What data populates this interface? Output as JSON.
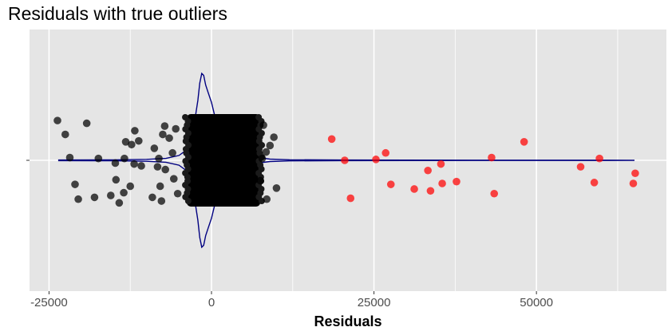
{
  "chart_data": {
    "type": "scatter",
    "title": "Residuals with true outliers",
    "xlabel": "Residuals",
    "ylabel": "",
    "xlim": [
      -28000,
      70000
    ],
    "x_ticks": [
      -25000,
      0,
      25000,
      50000
    ],
    "x_tick_labels": [
      "-25000",
      "0",
      "25000",
      "50000"
    ],
    "grid": true,
    "legend": "none",
    "colors": {
      "panel_bg": "#e5e5e5",
      "grid": "#ffffff",
      "normal_points": "#000000",
      "outlier_points": "#ff0000",
      "density_line": "#000080"
    },
    "series": [
      {
        "role": "normal",
        "points": [
          [
            -23700,
            0.43
          ],
          [
            -22500,
            0.28
          ],
          [
            -21800,
            0.03
          ],
          [
            -21000,
            -0.26
          ],
          [
            -20500,
            -0.42
          ],
          [
            -19200,
            0.4
          ],
          [
            -18000,
            -0.4
          ],
          [
            -17400,
            0.02
          ],
          [
            -15500,
            -0.38
          ],
          [
            -14800,
            -0.03
          ],
          [
            -14700,
            -0.21
          ],
          [
            -14200,
            -0.46
          ],
          [
            -13500,
            -0.35
          ],
          [
            -13400,
            0.02
          ],
          [
            -13200,
            0.2
          ],
          [
            -12500,
            -0.28
          ],
          [
            -12300,
            0.17
          ],
          [
            -11900,
            -0.04
          ],
          [
            -11800,
            0.32
          ],
          [
            -11200,
            0.21
          ],
          [
            -10800,
            -0.06
          ],
          [
            -9100,
            -0.4
          ],
          [
            -8800,
            0.13
          ],
          [
            -8300,
            -0.07
          ],
          [
            -8100,
            0.02
          ],
          [
            -7900,
            -0.28
          ],
          [
            -7700,
            -0.44
          ],
          [
            -7500,
            0.28
          ],
          [
            -7200,
            0.37
          ],
          [
            -7100,
            -0.1
          ],
          [
            -6500,
            0.24
          ],
          [
            -6000,
            0.08
          ],
          [
            -5800,
            -0.2
          ],
          [
            -5500,
            0.34
          ],
          [
            -5200,
            -0.36
          ],
          [
            9600,
            0.25
          ],
          [
            10000,
            -0.3
          ],
          [
            9000,
            0.16
          ],
          [
            8000,
            0.38
          ],
          [
            8500,
            -0.42
          ],
          [
            7800,
            0.02
          ],
          [
            7500,
            -0.22
          ],
          [
            8400,
            0.09
          ]
        ],
        "dense_cluster": {
          "x_range": [
            -3800,
            7500
          ],
          "y_range": [
            -0.5,
            0.5
          ]
        }
      },
      {
        "role": "outlier",
        "points": [
          [
            18500,
            0.23
          ],
          [
            20500,
            0.0
          ],
          [
            21400,
            -0.41
          ],
          [
            25300,
            0.01
          ],
          [
            26800,
            0.08
          ],
          [
            27600,
            -0.26
          ],
          [
            31200,
            -0.31
          ],
          [
            33300,
            -0.11
          ],
          [
            33700,
            -0.33
          ],
          [
            35300,
            -0.04
          ],
          [
            35500,
            -0.25
          ],
          [
            37700,
            -0.23
          ],
          [
            43100,
            0.03
          ],
          [
            43500,
            -0.36
          ],
          [
            48100,
            0.2
          ],
          [
            56800,
            -0.07
          ],
          [
            58900,
            -0.24
          ],
          [
            59700,
            0.02
          ],
          [
            64900,
            -0.25
          ],
          [
            65200,
            -0.14
          ]
        ]
      }
    ],
    "density_curve": [
      [
        -23500,
        0.003
      ],
      [
        -15000,
        0.005
      ],
      [
        -10000,
        0.01
      ],
      [
        -7000,
        0.02
      ],
      [
        -5000,
        0.05
      ],
      [
        -4000,
        0.1
      ],
      [
        -3200,
        0.22
      ],
      [
        -2600,
        0.4
      ],
      [
        -2100,
        0.62
      ],
      [
        -1800,
        0.8
      ],
      [
        -1500,
        0.9
      ],
      [
        -1200,
        0.88
      ],
      [
        -900,
        0.78
      ],
      [
        -500,
        0.7
      ],
      [
        0,
        0.6
      ],
      [
        500,
        0.46
      ],
      [
        1000,
        0.36
      ],
      [
        2000,
        0.24
      ],
      [
        3000,
        0.16
      ],
      [
        4500,
        0.09
      ],
      [
        6000,
        0.05
      ],
      [
        7500,
        0.025
      ],
      [
        9000,
        0.012
      ],
      [
        12000,
        0.006
      ],
      [
        20000,
        0.003
      ],
      [
        40000,
        0.002
      ],
      [
        65000,
        0.001
      ]
    ]
  }
}
